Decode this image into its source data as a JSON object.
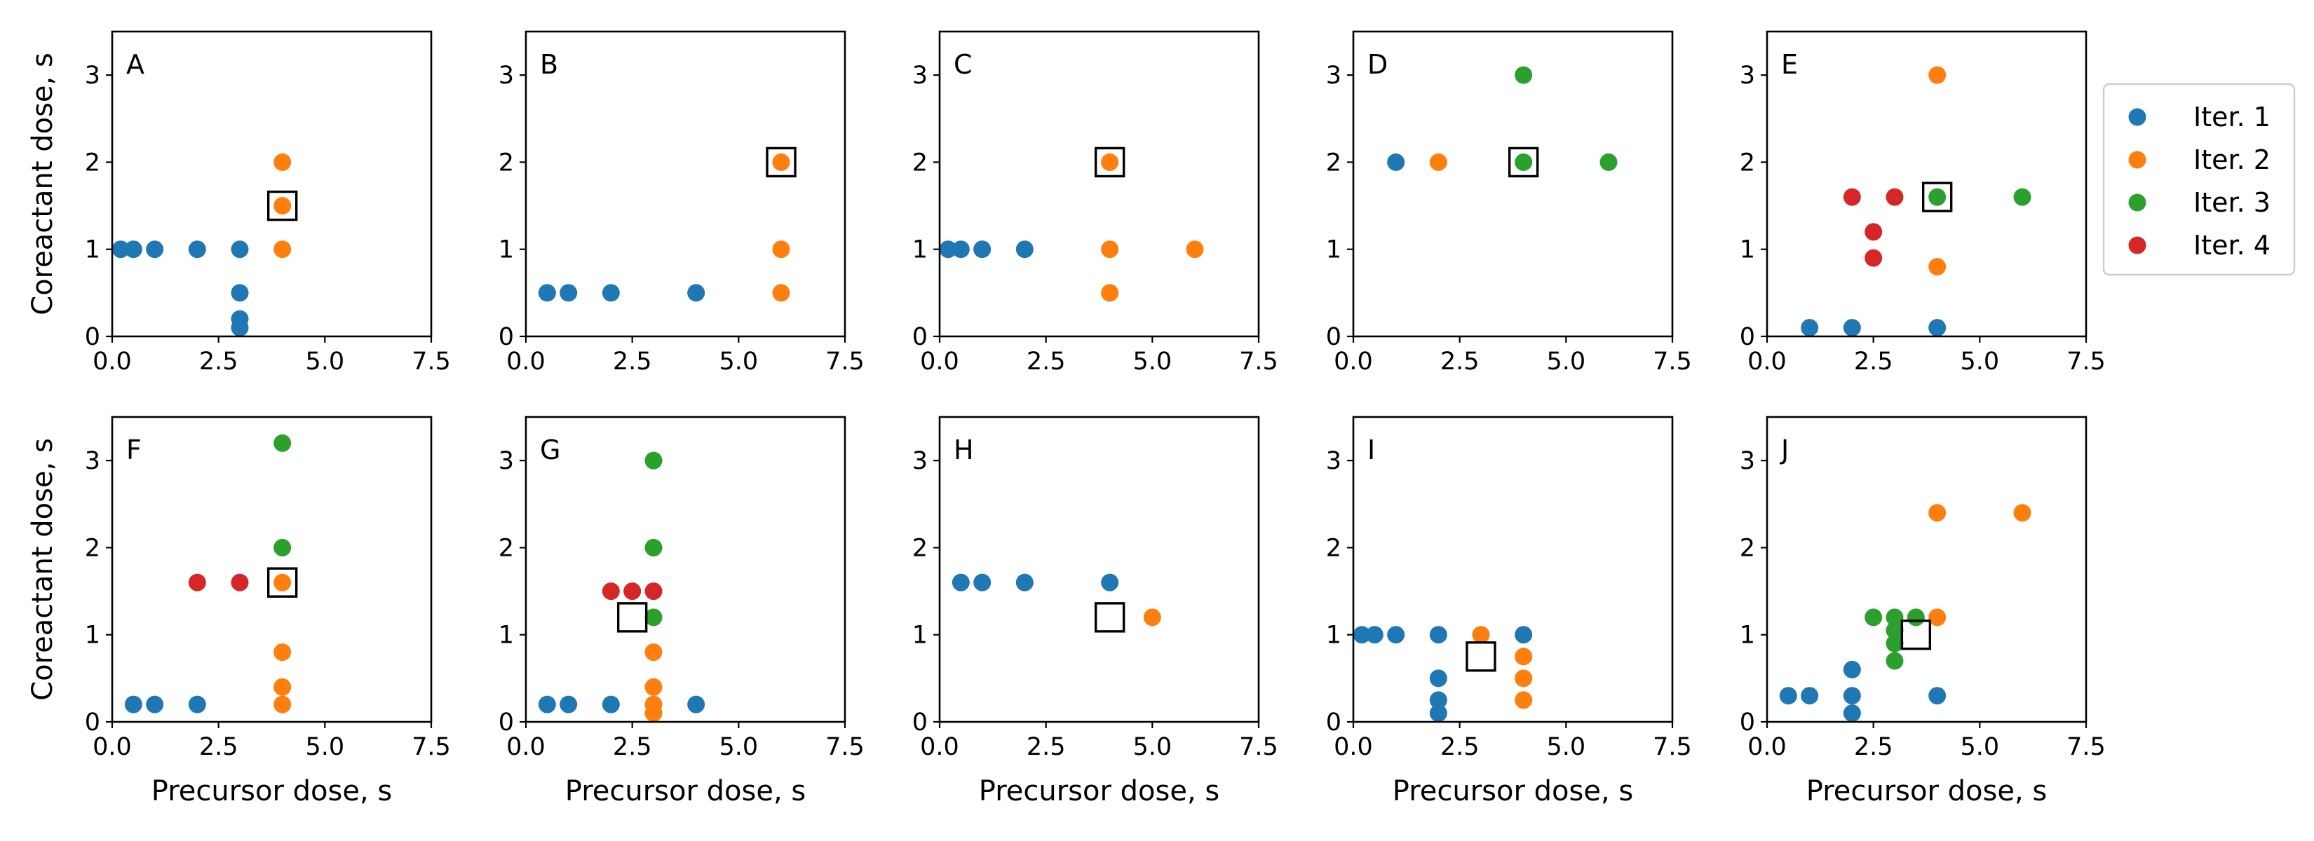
{
  "chart_data": {
    "type": "scatter",
    "xlabel": "Precursor dose, s",
    "ylabel": "Coreactant dose, s",
    "xlim": [
      0,
      7.5
    ],
    "ylim": [
      0,
      3.5
    ],
    "xticks": [
      "0.0",
      "2.5",
      "5.0",
      "7.5"
    ],
    "yticks": [
      "0",
      "1",
      "2",
      "3"
    ],
    "legend": {
      "position": "right",
      "entries": [
        {
          "name": "Iter. 1",
          "color": "#1f77b4"
        },
        {
          "name": "Iter. 2",
          "color": "#ff7f0e"
        },
        {
          "name": "Iter. 3",
          "color": "#2ca02c"
        },
        {
          "name": "Iter. 4",
          "color": "#d62728"
        }
      ]
    },
    "panels": [
      {
        "label": "A",
        "optimum": [
          4,
          1.5
        ],
        "series": [
          {
            "iter": 1,
            "points": [
              [
                0.2,
                1
              ],
              [
                0.5,
                1
              ],
              [
                1,
                1
              ],
              [
                2,
                1
              ],
              [
                3,
                1
              ],
              [
                3,
                0.5
              ],
              [
                3,
                0.2
              ],
              [
                3,
                0.1
              ]
            ]
          },
          {
            "iter": 2,
            "points": [
              [
                4,
                2
              ],
              [
                4,
                1.5
              ],
              [
                4,
                1
              ]
            ]
          }
        ]
      },
      {
        "label": "B",
        "optimum": [
          6,
          2
        ],
        "series": [
          {
            "iter": 1,
            "points": [
              [
                0.5,
                0.5
              ],
              [
                1,
                0.5
              ],
              [
                2,
                0.5
              ],
              [
                4,
                0.5
              ]
            ]
          },
          {
            "iter": 2,
            "points": [
              [
                6,
                2
              ],
              [
                6,
                1
              ],
              [
                6,
                0.5
              ]
            ]
          }
        ]
      },
      {
        "label": "C",
        "optimum": [
          4,
          2
        ],
        "series": [
          {
            "iter": 1,
            "points": [
              [
                0.2,
                1
              ],
              [
                0.5,
                1
              ],
              [
                1,
                1
              ],
              [
                2,
                1
              ]
            ]
          },
          {
            "iter": 2,
            "points": [
              [
                4,
                2
              ],
              [
                4,
                1
              ],
              [
                4,
                0.5
              ],
              [
                6,
                1
              ]
            ]
          }
        ]
      },
      {
        "label": "D",
        "optimum": [
          4,
          2
        ],
        "series": [
          {
            "iter": 1,
            "points": [
              [
                1,
                2
              ]
            ]
          },
          {
            "iter": 2,
            "points": [
              [
                2,
                2
              ]
            ]
          },
          {
            "iter": 3,
            "points": [
              [
                4,
                3
              ],
              [
                4,
                2
              ],
              [
                6,
                2
              ]
            ]
          }
        ]
      },
      {
        "label": "E",
        "optimum": [
          4,
          1.6
        ],
        "series": [
          {
            "iter": 1,
            "points": [
              [
                1,
                0.1
              ],
              [
                2,
                0.1
              ],
              [
                4,
                0.1
              ]
            ]
          },
          {
            "iter": 2,
            "points": [
              [
                4,
                3
              ],
              [
                4,
                0.8
              ]
            ]
          },
          {
            "iter": 3,
            "points": [
              [
                4,
                1.6
              ],
              [
                6,
                1.6
              ]
            ]
          },
          {
            "iter": 4,
            "points": [
              [
                2,
                1.6
              ],
              [
                3,
                1.6
              ],
              [
                2.5,
                1.2
              ],
              [
                2.5,
                0.9
              ]
            ]
          }
        ]
      },
      {
        "label": "F",
        "optimum": [
          4,
          1.6
        ],
        "series": [
          {
            "iter": 1,
            "points": [
              [
                0.5,
                0.2
              ],
              [
                1,
                0.2
              ],
              [
                2,
                0.2
              ]
            ]
          },
          {
            "iter": 2,
            "points": [
              [
                4,
                1.6
              ],
              [
                4,
                0.8
              ],
              [
                4,
                0.4
              ],
              [
                4,
                0.2
              ]
            ]
          },
          {
            "iter": 3,
            "points": [
              [
                4,
                3.2
              ],
              [
                4,
                2
              ]
            ]
          },
          {
            "iter": 4,
            "points": [
              [
                2,
                1.6
              ],
              [
                3,
                1.6
              ]
            ]
          }
        ]
      },
      {
        "label": "G",
        "optimum": [
          2.5,
          1.2
        ],
        "series": [
          {
            "iter": 1,
            "points": [
              [
                0.5,
                0.2
              ],
              [
                1,
                0.2
              ],
              [
                2,
                0.2
              ],
              [
                4,
                0.2
              ]
            ]
          },
          {
            "iter": 2,
            "points": [
              [
                3,
                0.8
              ],
              [
                3,
                0.4
              ],
              [
                3,
                0.2
              ],
              [
                3,
                0.1
              ]
            ]
          },
          {
            "iter": 3,
            "points": [
              [
                3,
                3
              ],
              [
                3,
                2
              ],
              [
                3,
                1.2
              ]
            ]
          },
          {
            "iter": 4,
            "points": [
              [
                2,
                1.5
              ],
              [
                2.5,
                1.5
              ],
              [
                3,
                1.5
              ]
            ]
          }
        ]
      },
      {
        "label": "H",
        "optimum": [
          4,
          1.2
        ],
        "series": [
          {
            "iter": 1,
            "points": [
              [
                0.5,
                1.6
              ],
              [
                1,
                1.6
              ],
              [
                2,
                1.6
              ],
              [
                4,
                1.6
              ]
            ]
          },
          {
            "iter": 2,
            "points": [
              [
                5,
                1.2
              ]
            ]
          }
        ]
      },
      {
        "label": "I",
        "optimum": [
          3,
          0.75
        ],
        "series": [
          {
            "iter": 1,
            "points": [
              [
                0.2,
                1
              ],
              [
                0.5,
                1
              ],
              [
                1,
                1
              ],
              [
                2,
                1
              ],
              [
                2,
                0.5
              ],
              [
                2,
                0.25
              ],
              [
                2,
                0.1
              ],
              [
                4,
                1
              ]
            ]
          },
          {
            "iter": 2,
            "points": [
              [
                3,
                1
              ],
              [
                4,
                0.75
              ],
              [
                4,
                0.5
              ],
              [
                4,
                0.25
              ]
            ]
          }
        ]
      },
      {
        "label": "J",
        "optimum": [
          3.5,
          1
        ],
        "series": [
          {
            "iter": 1,
            "points": [
              [
                0.5,
                0.3
              ],
              [
                1,
                0.3
              ],
              [
                2,
                0.6
              ],
              [
                2,
                0.3
              ],
              [
                2,
                0.1
              ],
              [
                4,
                0.3
              ]
            ]
          },
          {
            "iter": 2,
            "points": [
              [
                4,
                2.4
              ],
              [
                6,
                2.4
              ],
              [
                4,
                1.2
              ]
            ]
          },
          {
            "iter": 3,
            "points": [
              [
                2.5,
                1.2
              ],
              [
                3,
                1.2
              ],
              [
                3,
                1.05
              ],
              [
                3,
                0.9
              ],
              [
                3,
                0.7
              ],
              [
                3.5,
                1.2
              ]
            ]
          }
        ]
      }
    ]
  }
}
